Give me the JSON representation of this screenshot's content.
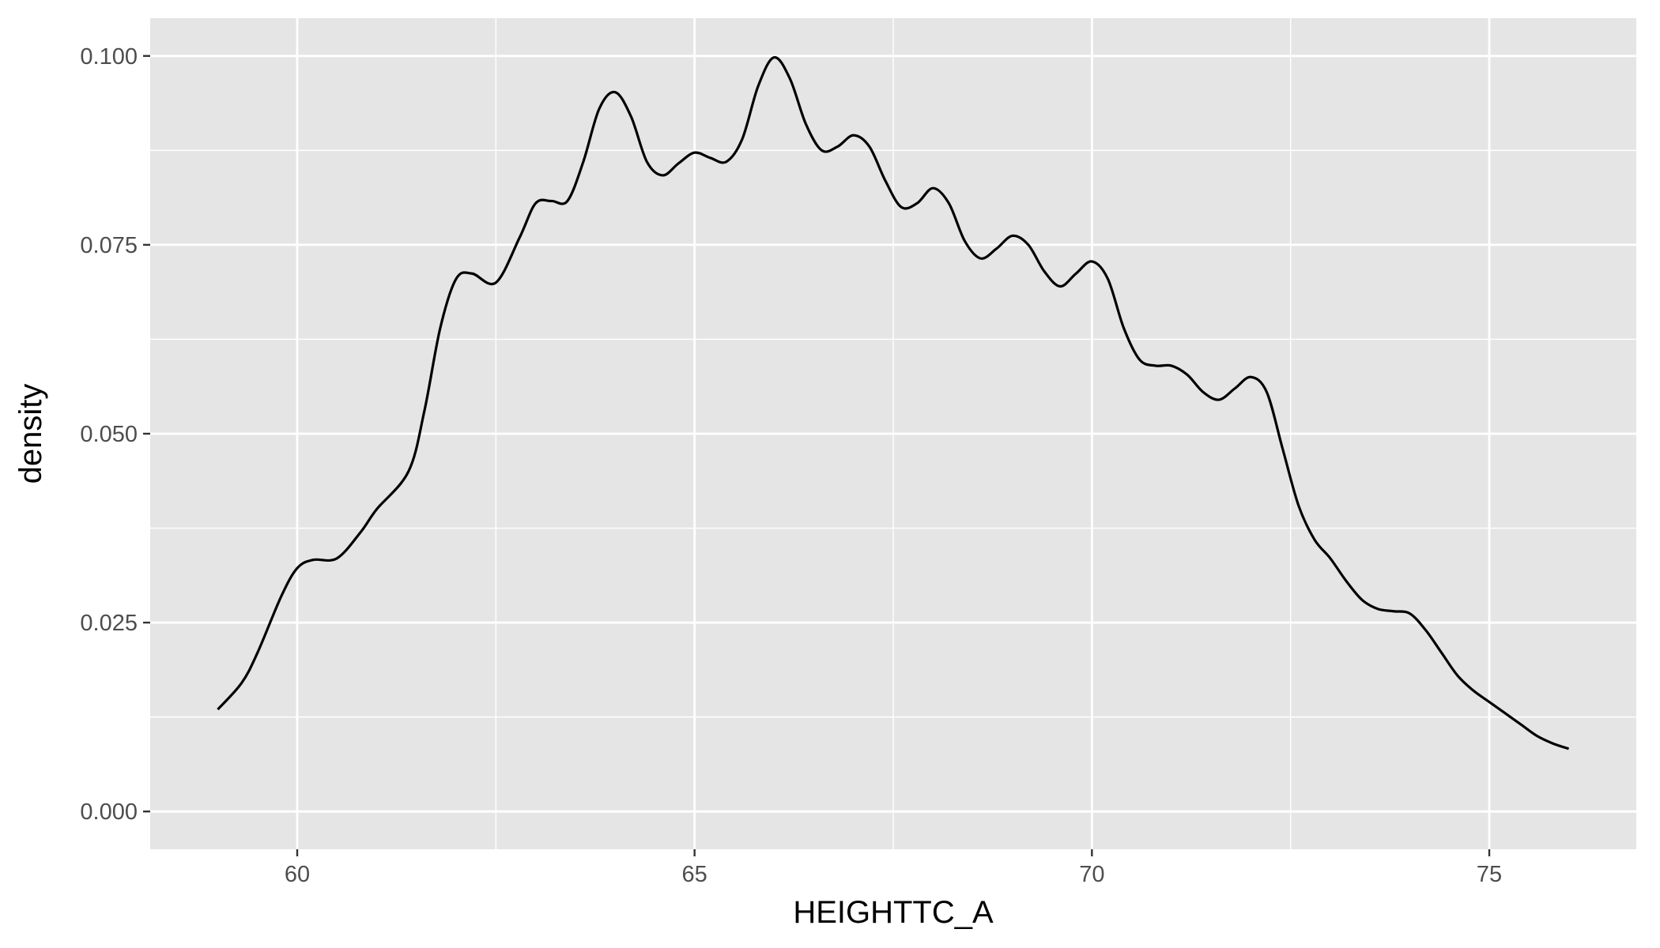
{
  "chart_data": {
    "type": "line",
    "title": "",
    "xlabel": "HEIGHTTC_A",
    "ylabel": "density",
    "xlim": [
      58.15,
      76.85
    ],
    "ylim": [
      -0.005,
      0.105
    ],
    "x_ticks": [
      60,
      65,
      70,
      75
    ],
    "x_tick_labels": [
      "60",
      "65",
      "70",
      "75"
    ],
    "x_minor_ticks": [
      62.5,
      67.5,
      72.5
    ],
    "y_ticks": [
      0.0,
      0.025,
      0.05,
      0.075,
      0.1
    ],
    "y_tick_labels": [
      "0.000",
      "0.025",
      "0.050",
      "0.075",
      "0.100"
    ],
    "y_minor_ticks": [
      0.0125,
      0.0375,
      0.0625,
      0.0875
    ],
    "grid": true,
    "legend": "none",
    "colors": {
      "panel_background": "#e5e5e5",
      "grid_line": "#ffffff",
      "line": "#000000",
      "tick_text": "#4d4d4d",
      "tick_mark": "#333333"
    },
    "series": [
      {
        "x": [
          59.0,
          59.3,
          59.5,
          59.8,
          60.0,
          60.2,
          60.5,
          60.8,
          61.0,
          61.4,
          61.6,
          61.8,
          62.0,
          62.2,
          62.5,
          62.8,
          63.0,
          63.2,
          63.4,
          63.6,
          63.8,
          64.0,
          64.2,
          64.4,
          64.6,
          64.8,
          65.0,
          65.2,
          65.4,
          65.6,
          65.8,
          66.0,
          66.2,
          66.4,
          66.6,
          66.8,
          67.0,
          67.2,
          67.4,
          67.6,
          67.8,
          68.0,
          68.2,
          68.4,
          68.6,
          68.8,
          69.0,
          69.2,
          69.4,
          69.6,
          69.8,
          70.0,
          70.2,
          70.4,
          70.6,
          70.8,
          71.0,
          71.2,
          71.4,
          71.6,
          71.8,
          72.0,
          72.2,
          72.4,
          72.6,
          72.8,
          73.0,
          73.2,
          73.4,
          73.6,
          73.8,
          74.0,
          74.2,
          74.4,
          74.6,
          74.8,
          75.0,
          75.2,
          75.4,
          75.6,
          75.8,
          76.0
        ],
        "y": [
          0.0135,
          0.017,
          0.021,
          0.0285,
          0.0322,
          0.0333,
          0.0335,
          0.037,
          0.04,
          0.045,
          0.053,
          0.064,
          0.0705,
          0.0712,
          0.07,
          0.076,
          0.0805,
          0.0808,
          0.0808,
          0.086,
          0.093,
          0.0952,
          0.092,
          0.086,
          0.0842,
          0.0858,
          0.0872,
          0.0865,
          0.086,
          0.089,
          0.096,
          0.0998,
          0.097,
          0.091,
          0.0875,
          0.088,
          0.0895,
          0.088,
          0.0835,
          0.08,
          0.0805,
          0.0825,
          0.0805,
          0.0755,
          0.0732,
          0.0745,
          0.0762,
          0.075,
          0.0715,
          0.0695,
          0.0712,
          0.0728,
          0.0705,
          0.064,
          0.0598,
          0.059,
          0.059,
          0.0578,
          0.0555,
          0.0545,
          0.056,
          0.0575,
          0.0555,
          0.048,
          0.0405,
          0.036,
          0.0335,
          0.0305,
          0.028,
          0.0268,
          0.0265,
          0.0262,
          0.024,
          0.021,
          0.018,
          0.016,
          0.0145,
          0.013,
          0.0115,
          0.01,
          0.009,
          0.0083
        ]
      }
    ]
  }
}
